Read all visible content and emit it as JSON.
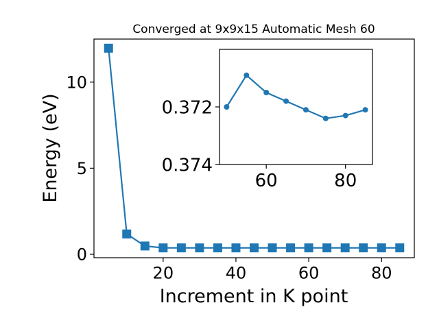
{
  "chart_data": [
    {
      "type": "line",
      "title": "Converged at 9x9x15 Automatic Mesh 60",
      "xlabel": "Increment in K point",
      "ylabel": "Energy (eV)",
      "xlim": [
        1,
        89
      ],
      "ylim": [
        -0.2,
        12.5
      ],
      "xticks": [
        20,
        40,
        60,
        80
      ],
      "yticks": [
        0,
        5,
        10
      ],
      "marker": "square",
      "color": "#1f77b4",
      "series": [
        {
          "x": [
            5,
            10,
            15,
            20,
            25,
            30,
            35,
            40,
            45,
            50,
            55,
            60,
            65,
            70,
            75,
            80,
            85
          ],
          "values": [
            11.97,
            1.18,
            0.4805,
            0.3713,
            0.3711,
            0.3709,
            0.371,
            0.3712,
            0.3716,
            0.372,
            0.3709,
            0.3715,
            0.3718,
            0.3721,
            0.3724,
            0.3723,
            0.3721
          ]
        }
      ]
    },
    {
      "type": "line",
      "inset": true,
      "xlim": [
        48.2,
        86.8
      ],
      "ylim": [
        0.374,
        0.37
      ],
      "inverted_y": true,
      "xticks": [
        60,
        80
      ],
      "yticks": [
        0.372,
        0.374
      ],
      "marker": "circle",
      "color": "#1f77b4",
      "series": [
        {
          "x": [
            50,
            55,
            60,
            65,
            70,
            75,
            80,
            85
          ],
          "values": [
            0.372,
            0.3709,
            0.3715,
            0.3718,
            0.3721,
            0.3724,
            0.3723,
            0.3721
          ]
        }
      ]
    }
  ]
}
